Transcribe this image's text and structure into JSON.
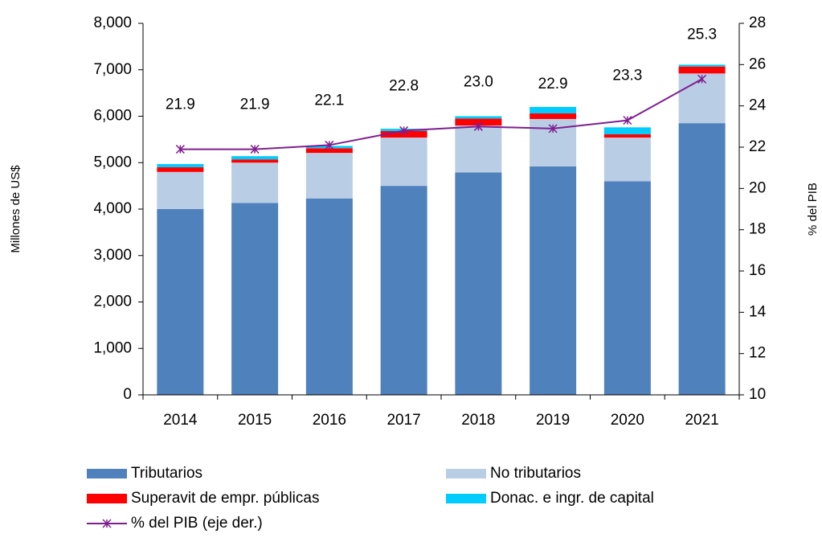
{
  "chart_data": {
    "type": "bar",
    "y_label": "Millones de US$",
    "y2_label": "% del PIB",
    "categories": [
      "2014",
      "2015",
      "2016",
      "2017",
      "2018",
      "2019",
      "2020",
      "2021"
    ],
    "series": [
      {
        "name": "Tributarios",
        "type": "bar",
        "color": "#4f81bd",
        "values": [
          4000,
          4130,
          4230,
          4500,
          4790,
          4920,
          4600,
          5850
        ]
      },
      {
        "name": "No tributarios",
        "type": "bar",
        "color": "#b9cde5",
        "values": [
          800,
          870,
          980,
          1040,
          1010,
          1020,
          940,
          1070
        ]
      },
      {
        "name": "Superavit de empr. públicas",
        "type": "bar",
        "color": "#ff0000",
        "values": [
          100,
          70,
          100,
          140,
          150,
          120,
          70,
          150
        ]
      },
      {
        "name": "Donac. e ingr. de capital",
        "type": "bar",
        "color": "#00ccff",
        "values": [
          70,
          70,
          50,
          50,
          50,
          140,
          150,
          40
        ]
      },
      {
        "name": "% del PIB (eje der.)",
        "type": "line",
        "axis": "y2",
        "color": "#7f1f8f",
        "values": [
          21.9,
          21.9,
          22.1,
          22.8,
          23.0,
          22.9,
          23.3,
          25.3
        ],
        "value_labels": [
          "21.9",
          "21.9",
          "22.1",
          "22.8",
          "23.0",
          "22.9",
          "23.3",
          "25.3"
        ]
      }
    ],
    "ylim": [
      0,
      8000
    ],
    "yticks": [
      0,
      {
        "value": 1000,
        "label": "1,000"
      },
      {
        "value": 2000,
        "label": "2,000"
      },
      {
        "value": 3000,
        "label": "3,000"
      },
      {
        "value": 4000,
        "label": "4,000"
      },
      {
        "value": 5000,
        "label": "5,000"
      },
      {
        "value": 6000,
        "label": "6,000"
      },
      {
        "value": 7000,
        "label": "7,000"
      },
      {
        "value": 8000,
        "label": "8,000"
      }
    ],
    "y2lim": [
      10,
      28
    ],
    "y2ticks": [
      10,
      12,
      14,
      16,
      18,
      20,
      22,
      24,
      26,
      28
    ],
    "grid": false,
    "legend": "bottom"
  }
}
